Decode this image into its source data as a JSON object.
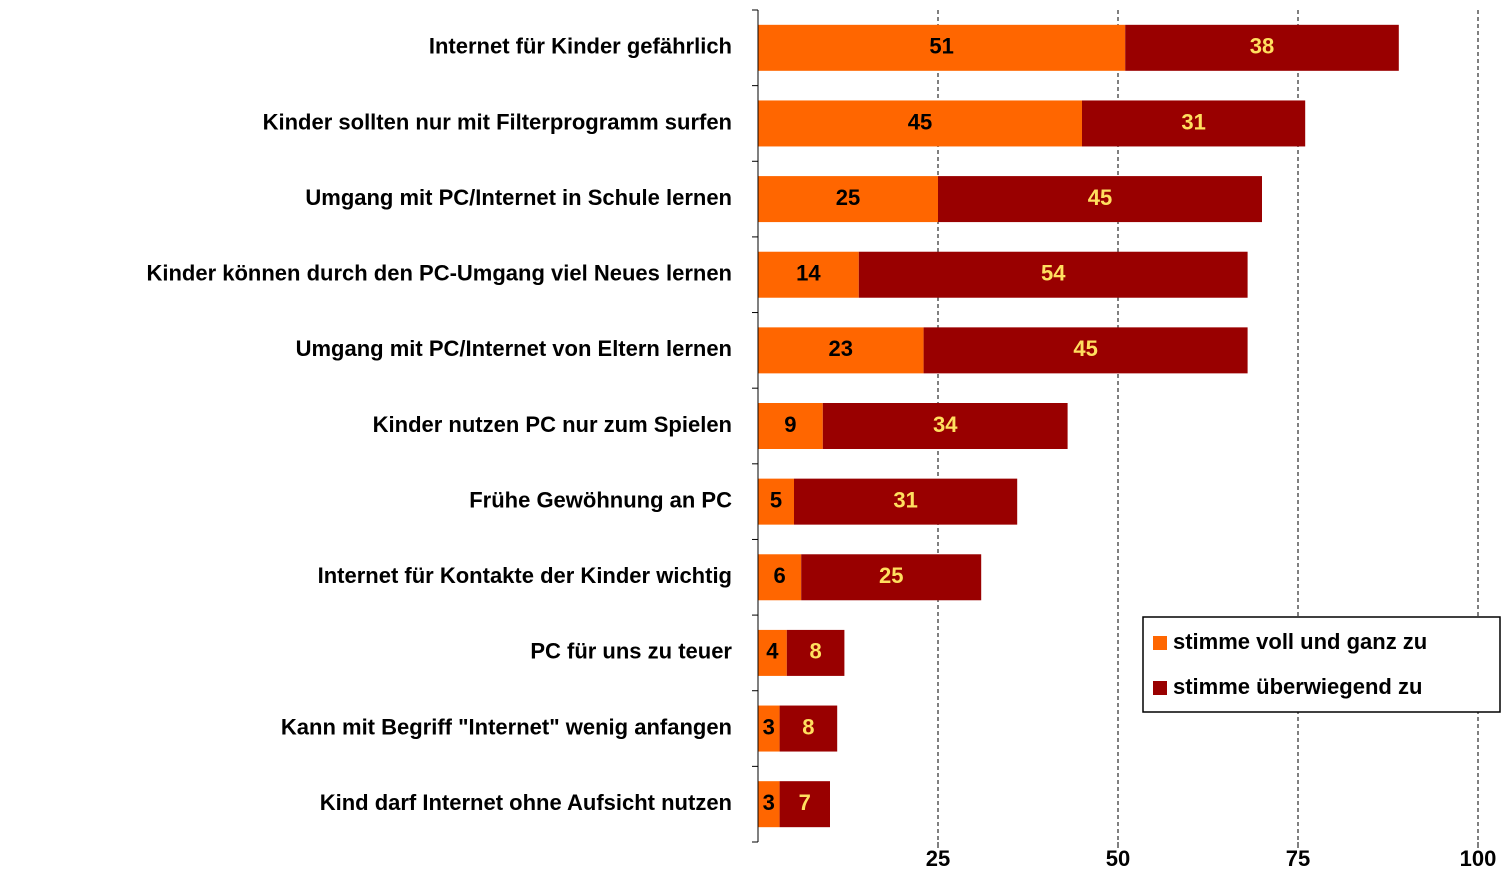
{
  "chart_data": {
    "type": "stacked_barh",
    "categories": [
      "Internet für Kinder gefährlich",
      "Kinder sollten nur mit Filterprogramm surfen",
      "Umgang mit PC/Internet in Schule lernen",
      "Kinder können durch den PC-Umgang viel Neues lernen",
      "Umgang mit PC/Internet von Eltern lernen",
      "Kinder nutzen PC nur zum Spielen",
      "Frühe Gewöhnung an PC",
      "Internet für Kontakte der Kinder wichtig",
      "PC für uns zu teuer",
      "Kann mit Begriff \"Internet\" wenig anfangen",
      "Kind darf Internet ohne Aufsicht nutzen"
    ],
    "series": [
      {
        "name": "stimme voll und ganz zu",
        "color": "#ff6600",
        "label_color": "#000000",
        "values": [
          51,
          45,
          25,
          14,
          23,
          9,
          5,
          6,
          4,
          3,
          3
        ]
      },
      {
        "name": "stimme überwiegend zu",
        "color": "#990000",
        "label_color": "#ffdf5f",
        "values": [
          38,
          31,
          45,
          54,
          45,
          34,
          31,
          25,
          8,
          8,
          7
        ]
      }
    ],
    "xlim": [
      0,
      100
    ],
    "xticks": [
      25,
      50,
      75,
      100
    ],
    "grid": true,
    "legend": "lower right"
  }
}
